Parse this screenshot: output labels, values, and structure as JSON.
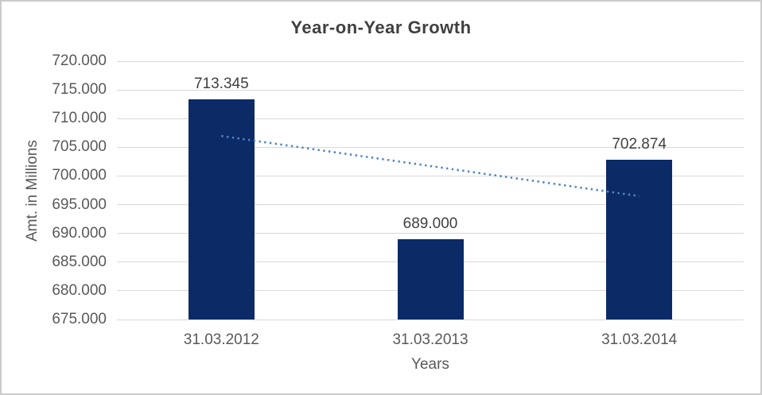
{
  "chart_data": {
    "type": "bar",
    "title": "Year-on-Year Growth",
    "xlabel": "Years",
    "ylabel": "Amt. in Millions",
    "categories": [
      "31.03.2012",
      "31.03.2013",
      "31.03.2014"
    ],
    "values": [
      713345,
      689000,
      702874
    ],
    "value_labels": [
      "713.345",
      "689.000",
      "702.874"
    ],
    "ylim": [
      675000,
      720000
    ],
    "ytick_step": 5000,
    "yticks": [
      {
        "value": 720000,
        "label": "720.000"
      },
      {
        "value": 715000,
        "label": "715.000"
      },
      {
        "value": 710000,
        "label": "710.000"
      },
      {
        "value": 705000,
        "label": "705.000"
      },
      {
        "value": 700000,
        "label": "700.000"
      },
      {
        "value": 695000,
        "label": "695.000"
      },
      {
        "value": 690000,
        "label": "690.000"
      },
      {
        "value": 685000,
        "label": "685.000"
      },
      {
        "value": 680000,
        "label": "680.000"
      },
      {
        "value": 675000,
        "label": "675.000"
      }
    ],
    "grid": true,
    "legend": "none",
    "trendline": {
      "type": "linear",
      "style": "dotted",
      "start_value": 706974,
      "end_value": 696505,
      "color": "#4E86C6"
    },
    "colors": {
      "bar": "#0B2A66",
      "gridline": "#D9D9D9",
      "axis_line": "#D9D9D9",
      "title": "#3F3F3F",
      "ticks": "#595959",
      "data_label": "#404040",
      "figure_border": "#CBCBCB",
      "background": "#FFFFFF"
    }
  }
}
